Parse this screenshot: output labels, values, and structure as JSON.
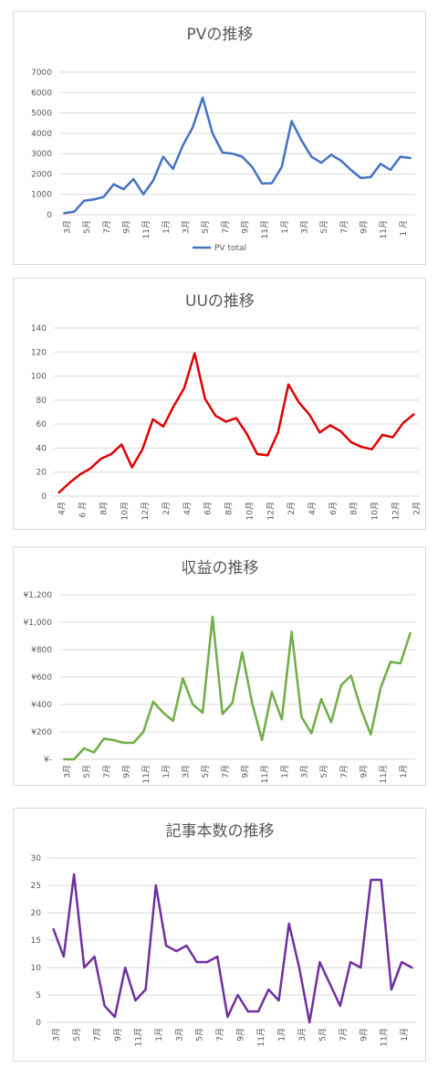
{
  "chart_data": [
    {
      "type": "line",
      "title": "PVの推移",
      "ylim": [
        0,
        7000
      ],
      "yticks": [
        "0",
        "1000",
        "2000",
        "3000",
        "4000",
        "5000",
        "6000",
        "7000"
      ],
      "ytick_values": [
        0,
        1000,
        2000,
        3000,
        4000,
        5000,
        6000,
        7000
      ],
      "categories": [
        "3月",
        "4月",
        "5月",
        "6月",
        "7月",
        "8月",
        "9月",
        "10月",
        "11月",
        "12月",
        "1月",
        "2月",
        "3月",
        "4月",
        "5月",
        "6月",
        "7月",
        "8月",
        "9月",
        "10月",
        "11月",
        "12月",
        "1月",
        "2月",
        "3月",
        "4月",
        "5月",
        "6月",
        "7月",
        "8月",
        "9月",
        "10月",
        "11月",
        "12月",
        "1 月",
        "2月"
      ],
      "shown_x_labels": [
        "3月",
        "5月",
        "7月",
        "9月",
        "11月",
        "1月",
        "3月",
        "5月",
        "7月",
        "9月",
        "11月",
        "1月",
        "3月",
        "5月",
        "7月",
        "9月",
        "11月",
        "1 月"
      ],
      "series": [
        {
          "name": "PV total",
          "color": "#4472c4",
          "values": [
            80,
            150,
            680,
            750,
            880,
            1500,
            1250,
            1750,
            1000,
            1680,
            2850,
            2250,
            3400,
            4300,
            5750,
            4000,
            3050,
            3000,
            2850,
            2350,
            1530,
            1550,
            2350,
            4600,
            3650,
            2850,
            2550,
            2950,
            2650,
            2200,
            1800,
            1850,
            2500,
            2200,
            2850,
            2780
          ]
        }
      ],
      "legend": "bottom",
      "legend_label": "PV total"
    },
    {
      "type": "line",
      "title": "UUの推移",
      "ylim": [
        0,
        140
      ],
      "yticks": [
        "0",
        "20",
        "40",
        "60",
        "80",
        "100",
        "120",
        "140"
      ],
      "ytick_values": [
        0,
        20,
        40,
        60,
        80,
        100,
        120,
        140
      ],
      "categories": [
        "4月",
        "5月",
        "6月",
        "7月",
        "8月",
        "9月",
        "10月",
        "11月",
        "12月",
        "1月",
        "2月",
        "3月",
        "4月",
        "5月",
        "6月",
        "7月",
        "8月",
        "9月",
        "10月",
        "11月",
        "12月",
        "1月",
        "2月",
        "3月",
        "4月",
        "5月",
        "6月",
        "7月",
        "8月",
        "9月",
        "10月",
        "11月",
        "12月",
        "1月",
        "2月"
      ],
      "shown_x_labels": [
        "4月",
        "6 月",
        "8月",
        "10月",
        "12月",
        "2月",
        "4月",
        "6月",
        "8月",
        "10月",
        "12月",
        "2月",
        "4月",
        "6月",
        "8月",
        "10月",
        "12月",
        "2月"
      ],
      "series": [
        {
          "color": "#e00000",
          "values": [
            3,
            11,
            18,
            23,
            31,
            35,
            43,
            24,
            39,
            64,
            58,
            75,
            90,
            119,
            81,
            67,
            62,
            65,
            52,
            35,
            34,
            53,
            93,
            78,
            68,
            53,
            59,
            54,
            45,
            41,
            39,
            51,
            49,
            61,
            68
          ]
        }
      ]
    },
    {
      "type": "line",
      "title": "収益の推移",
      "ylim": [
        0,
        1200
      ],
      "yticks": [
        "¥-",
        "¥200",
        "¥400",
        "¥600",
        "¥800",
        "¥1,000",
        "¥1,200"
      ],
      "ytick_values": [
        0,
        200,
        400,
        600,
        800,
        1000,
        1200
      ],
      "categories": [
        "3月",
        "4月",
        "5月",
        "6月",
        "7月",
        "8月",
        "9月",
        "10月",
        "11月",
        "12月",
        "1月",
        "2月",
        "3月",
        "4月",
        "5月",
        "6月",
        "7月",
        "8月",
        "9月",
        "10月",
        "11月",
        "12月",
        "1月",
        "2月",
        "3月",
        "4月",
        "5月",
        "6月",
        "7月",
        "8月",
        "9月",
        "10月",
        "11月",
        "12月",
        "1月",
        "2月"
      ],
      "shown_x_labels": [
        "3月",
        "5月",
        "7月",
        "9月",
        "11月",
        "1月",
        "3月",
        "5月",
        "7月",
        "9月",
        "11月",
        "1月",
        "3月",
        "5月",
        "7月",
        "9月",
        "11月",
        "1月"
      ],
      "series": [
        {
          "color": "#70ad47",
          "values": [
            0,
            0,
            80,
            50,
            150,
            140,
            120,
            120,
            200,
            420,
            340,
            280,
            590,
            400,
            340,
            1040,
            330,
            410,
            780,
            410,
            140,
            490,
            290,
            930,
            310,
            190,
            440,
            270,
            540,
            610,
            370,
            180,
            520,
            710,
            700,
            920
          ]
        }
      ]
    },
    {
      "type": "line",
      "title": "記事本数の推移",
      "ylim": [
        0,
        30
      ],
      "yticks": [
        "0",
        "5",
        "10",
        "15",
        "20",
        "25",
        "30"
      ],
      "ytick_values": [
        0,
        5,
        10,
        15,
        20,
        25,
        30
      ],
      "categories": [
        "3月",
        "4月",
        "5月",
        "6月",
        "7月",
        "8月",
        "9月",
        "10月",
        "11月",
        "12月",
        "1月",
        "2月",
        "3月",
        "4月",
        "5月",
        "6月",
        "7月",
        "8月",
        "9月",
        "10月",
        "11月",
        "12月",
        "1月",
        "2月",
        "3月",
        "4月",
        "5月",
        "6月",
        "7月",
        "8月",
        "9月",
        "10月",
        "11月",
        "12月",
        "1月",
        "2月"
      ],
      "shown_x_labels": [
        "3月",
        "5月",
        "7月",
        "9月",
        "11月",
        "1月",
        "3月",
        "5月",
        "7月",
        "9月",
        "11月",
        "1月",
        "3月",
        "5月",
        "7月",
        "9月",
        "11月",
        "1月"
      ],
      "series": [
        {
          "color": "#7030a0",
          "values": [
            17,
            12,
            27,
            10,
            12,
            3,
            1,
            10,
            4,
            6,
            25,
            14,
            13,
            14,
            11,
            11,
            12,
            1,
            5,
            2,
            2,
            6,
            4,
            18,
            10,
            0,
            11,
            7,
            3,
            11,
            10,
            26,
            26,
            6,
            11,
            10
          ]
        }
      ]
    }
  ],
  "colors": {
    "grid": "#d9d9d9",
    "text": "#595959",
    "border": "#d9d9d9"
  }
}
